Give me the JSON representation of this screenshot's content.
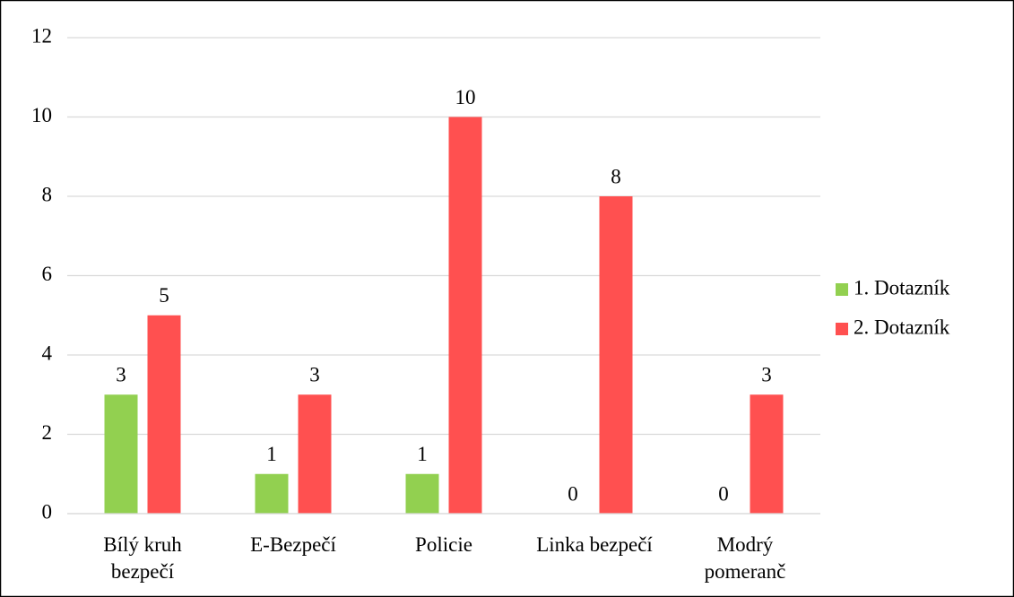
{
  "chart_data": {
    "type": "bar",
    "categories": [
      "Bílý kruh bezpečí",
      "E-Bezpečí",
      "Policie",
      "Linka bezpečí",
      "Modrý pomeranč"
    ],
    "series": [
      {
        "name": "1. Dotazník",
        "color": "#92d050",
        "values": [
          3,
          1,
          1,
          0,
          0
        ]
      },
      {
        "name": "2. Dotazník",
        "color": "#ff5050",
        "values": [
          5,
          3,
          10,
          8,
          3
        ]
      }
    ],
    "ylim": [
      0,
      12
    ],
    "yticks": [
      0,
      2,
      4,
      6,
      8,
      10,
      12
    ],
    "grid": true,
    "legend": "right"
  }
}
